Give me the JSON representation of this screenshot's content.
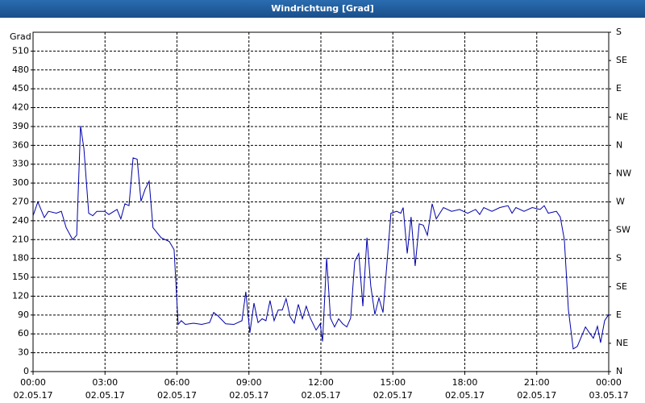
{
  "chart_data": {
    "type": "line",
    "title": "Windrichtung [Grad]",
    "y_label": "Grad",
    "color": "#0000aa",
    "grid": true,
    "xlim": [
      0,
      24
    ],
    "ylim": [
      0,
      540
    ],
    "y2lim": [
      0,
      540
    ],
    "xticks": [
      {
        "value": 0,
        "label": [
          "00:00",
          "02.05.17"
        ]
      },
      {
        "value": 3,
        "label": [
          "03:00",
          "02.05.17"
        ]
      },
      {
        "value": 6,
        "label": [
          "06:00",
          "02.05.17"
        ]
      },
      {
        "value": 9,
        "label": [
          "09:00",
          "02.05.17"
        ]
      },
      {
        "value": 12,
        "label": [
          "12:00",
          "02.05.17"
        ]
      },
      {
        "value": 15,
        "label": [
          "15:00",
          "02.05.17"
        ]
      },
      {
        "value": 18,
        "label": [
          "18:00",
          "02.05.17"
        ]
      },
      {
        "value": 21,
        "label": [
          "21:00",
          "02.05.17"
        ]
      },
      {
        "value": 24,
        "label": [
          "00:00",
          "03.05.17"
        ]
      }
    ],
    "yticks": [
      0,
      30,
      60,
      90,
      120,
      150,
      180,
      210,
      240,
      270,
      300,
      330,
      360,
      390,
      420,
      450,
      480,
      510
    ],
    "y2ticks": [
      {
        "value": 0,
        "label": "N"
      },
      {
        "value": 45,
        "label": "NE"
      },
      {
        "value": 90,
        "label": "E"
      },
      {
        "value": 135,
        "label": "SE"
      },
      {
        "value": 180,
        "label": "S"
      },
      {
        "value": 225,
        "label": "SW"
      },
      {
        "value": 270,
        "label": "W"
      },
      {
        "value": 315,
        "label": "NW"
      },
      {
        "value": 360,
        "label": "N"
      },
      {
        "value": 405,
        "label": "NE"
      },
      {
        "value": 450,
        "label": "E"
      },
      {
        "value": 495,
        "label": "SE"
      },
      {
        "value": 540,
        "label": "S"
      }
    ],
    "x": [
      0,
      0.2,
      0.47,
      0.64,
      0.97,
      1.18,
      1.38,
      1.65,
      1.82,
      1.98,
      2.12,
      2.32,
      2.49,
      2.66,
      2.99,
      3.16,
      3.5,
      3.66,
      3.83,
      4.0,
      4.17,
      4.34,
      4.5,
      4.67,
      4.84,
      5.0,
      5.34,
      5.68,
      5.88,
      6.05,
      6.18,
      6.35,
      6.69,
      7.03,
      7.36,
      7.53,
      7.7,
      8.03,
      8.37,
      8.71,
      8.87,
      9.04,
      9.21,
      9.38,
      9.55,
      9.71,
      9.88,
      10.05,
      10.22,
      10.39,
      10.55,
      10.72,
      10.89,
      11.06,
      11.23,
      11.39,
      11.56,
      11.8,
      11.97,
      12.07,
      12.24,
      12.4,
      12.57,
      12.74,
      12.91,
      13.08,
      13.24,
      13.41,
      13.58,
      13.75,
      13.92,
      14.08,
      14.25,
      14.42,
      14.59,
      14.92,
      15.16,
      15.33,
      15.43,
      15.6,
      15.76,
      15.93,
      16.1,
      16.27,
      16.44,
      16.64,
      16.81,
      17.11,
      17.45,
      17.78,
      18.12,
      18.45,
      18.62,
      18.79,
      19.13,
      19.46,
      19.8,
      19.97,
      20.13,
      20.47,
      20.81,
      21.14,
      21.31,
      21.48,
      21.82,
      21.98,
      22.15,
      22.32,
      22.52,
      22.69,
      23.03,
      23.19,
      23.36,
      23.53,
      23.66,
      23.83,
      24
    ],
    "values": [
      248,
      270,
      245,
      255,
      252,
      255,
      229,
      210,
      217,
      391,
      355,
      252,
      248,
      255,
      255,
      250,
      258,
      243,
      267,
      264,
      340,
      338,
      271,
      290,
      303,
      229,
      213,
      207,
      194,
      75,
      81,
      75,
      77,
      75,
      78,
      94,
      89,
      76,
      75,
      81,
      127,
      62,
      109,
      78,
      84,
      81,
      113,
      81,
      98,
      98,
      116,
      87,
      77,
      107,
      84,
      104,
      85,
      66,
      76,
      48,
      181,
      85,
      71,
      84,
      76,
      71,
      85,
      175,
      188,
      104,
      213,
      136,
      91,
      117,
      94,
      252,
      255,
      252,
      261,
      188,
      246,
      168,
      235,
      233,
      217,
      267,
      243,
      261,
      255,
      258,
      252,
      258,
      250,
      261,
      255,
      261,
      264,
      252,
      261,
      255,
      261,
      258,
      264,
      252,
      255,
      246,
      210,
      98,
      36,
      40,
      71,
      62,
      53,
      72,
      46,
      81,
      91
    ]
  }
}
